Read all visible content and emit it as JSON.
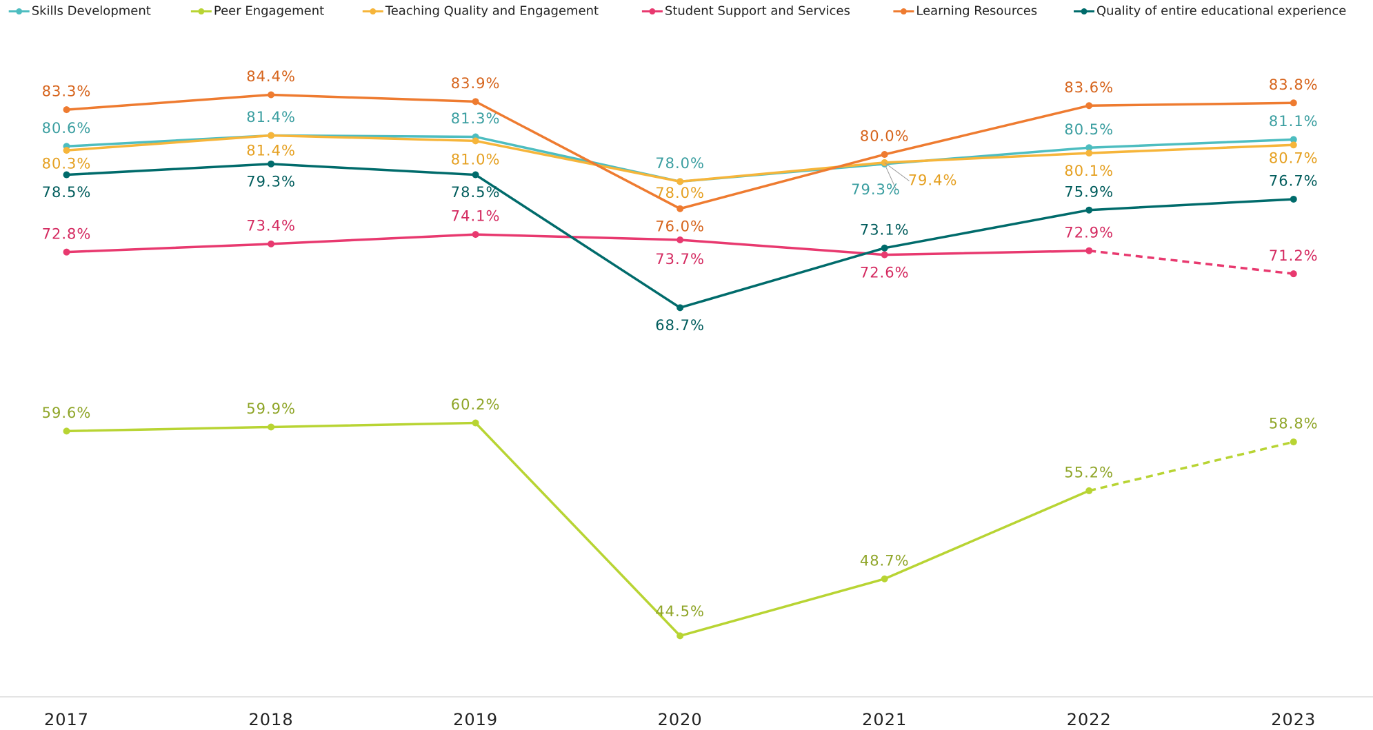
{
  "chart_data": {
    "type": "line",
    "categories": [
      "2017",
      "2018",
      "2019",
      "2020",
      "2021",
      "2022",
      "2023"
    ],
    "ylim": [
      40,
      88
    ],
    "dashed_from_index": 5,
    "series": [
      {
        "name": "Skills Development",
        "color": "#4dbdc0",
        "label_color": "#3a9ea0",
        "values": [
          80.6,
          81.4,
          81.3,
          78.0,
          79.3,
          80.5,
          81.1
        ],
        "value_labels": [
          "80.6%",
          "81.4%",
          "81.3%",
          "78.0%",
          "79.3%",
          "80.5%",
          "81.1%"
        ],
        "dashed": false
      },
      {
        "name": "Peer Engagement",
        "color": "#b8d433",
        "label_color": "#8fa528",
        "values": [
          59.6,
          59.9,
          60.2,
          44.5,
          48.7,
          55.2,
          58.8
        ],
        "value_labels": [
          "59.6%",
          "59.9%",
          "60.2%",
          "44.5%",
          "48.7%",
          "55.2%",
          "58.8%"
        ],
        "dashed": true
      },
      {
        "name": "Teaching Quality and Engagement",
        "color": "#f6b53a",
        "label_color": "#e5a021",
        "values": [
          80.3,
          81.4,
          81.0,
          78.0,
          79.4,
          80.1,
          80.7
        ],
        "value_labels": [
          "80.3%",
          "81.4%",
          "81.0%",
          "78.0%",
          "79.4%",
          "80.1%",
          "80.7%"
        ],
        "dashed": false
      },
      {
        "name": "Student Support and Services",
        "color": "#e8396f",
        "label_color": "#d42a60",
        "values": [
          72.8,
          73.4,
          74.1,
          73.7,
          72.6,
          72.9,
          71.2
        ],
        "value_labels": [
          "72.8%",
          "73.4%",
          "74.1%",
          "73.7%",
          "72.6%",
          "72.9%",
          "71.2%"
        ],
        "dashed": true
      },
      {
        "name": "Learning Resources",
        "color": "#ee7b30",
        "label_color": "#d6641c",
        "values": [
          83.3,
          84.4,
          83.9,
          76.0,
          80.0,
          83.6,
          83.8
        ],
        "value_labels": [
          "83.3%",
          "84.4%",
          "83.9%",
          "76.0%",
          "80.0%",
          "83.6%",
          "83.8%"
        ],
        "dashed": false
      },
      {
        "name": "Quality of entire educational experience",
        "color": "#006b6b",
        "label_color": "#005c5c",
        "values": [
          78.5,
          79.3,
          78.5,
          68.7,
          73.1,
          75.9,
          76.7
        ],
        "value_labels": [
          "78.5%",
          "79.3%",
          "78.5%",
          "68.7%",
          "73.1%",
          "75.9%",
          "76.7%"
        ],
        "dashed": false
      }
    ]
  }
}
